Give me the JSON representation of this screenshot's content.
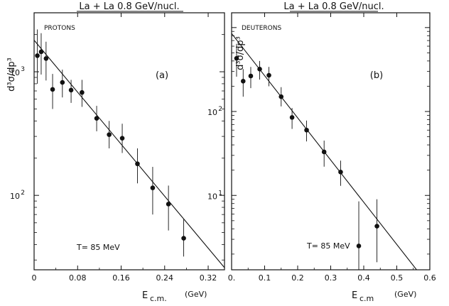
{
  "chart_data": [
    {
      "type": "scatter",
      "title": "La + La 0.8 GeV/nucl.",
      "ylabel": "d³σ/dp³",
      "xlabel_main": "E",
      "xlabel_sub": "c.m.",
      "xlabel_unit": "(GeV)",
      "panel_tag": "(a)",
      "particle": "PROTONS",
      "temperature_label": "T=  85 MeV",
      "xlim": [
        0,
        0.35
      ],
      "ylim": [
        25,
        3000
      ],
      "yscale": "log",
      "x_ticks": [
        0,
        0.08,
        0.16,
        0.24,
        0.32
      ],
      "x_tick_labels": [
        "0",
        "0.08",
        "0.16",
        "0.24",
        "0.32"
      ],
      "y_ticks": [
        100,
        1000
      ],
      "y_tick_labels": [
        [
          "10",
          "2"
        ],
        [
          "10",
          "3"
        ]
      ],
      "fit_line": [
        [
          0,
          1800
        ],
        [
          0.35,
          26
        ]
      ],
      "series": [
        {
          "x": [
            0.006,
            0.013,
            0.022,
            0.034,
            0.052,
            0.068,
            0.088,
            0.115,
            0.138,
            0.162,
            0.19,
            0.218,
            0.247,
            0.275
          ],
          "y": [
            1350,
            1450,
            1280,
            720,
            820,
            710,
            680,
            420,
            310,
            290,
            180,
            115,
            85,
            45
          ],
          "err_low": [
            800,
            950,
            850,
            500,
            620,
            560,
            520,
            330,
            240,
            220,
            125,
            70,
            52,
            32
          ],
          "err_high": [
            2200,
            2050,
            1750,
            960,
            1040,
            860,
            860,
            530,
            400,
            380,
            240,
            170,
            120,
            64
          ]
        }
      ]
    },
    {
      "type": "scatter",
      "title": "La + La 0.8 GeV/nucl.",
      "ylabel": "d³σ/dp³",
      "xlabel_main": "E",
      "xlabel_sub": "c.m",
      "xlabel_unit": "(GeV)",
      "panel_tag": "(b)",
      "particle": "DEUTERONS",
      "temperature_label": "T=  85 MeV",
      "xlim": [
        0,
        0.6
      ],
      "ylim": [
        1.3,
        1500
      ],
      "yscale": "log",
      "x_ticks": [
        0,
        0.1,
        0.2,
        0.3,
        0.4,
        0.5,
        0.6
      ],
      "x_tick_labels": [
        "0.",
        "0.1",
        "0.2",
        "0.3",
        "0.4",
        "0.5",
        "0.6"
      ],
      "y_ticks": [
        10,
        100
      ],
      "y_tick_labels": [
        [
          "10",
          "1"
        ],
        [
          "10",
          "2"
        ]
      ],
      "fit_line": [
        [
          0,
          850
        ],
        [
          0.56,
          1.3
        ]
      ],
      "series": [
        {
          "x": [
            0.015,
            0.035,
            0.058,
            0.085,
            0.113,
            0.15,
            0.183,
            0.227,
            0.28,
            0.33,
            0.385,
            0.44
          ],
          "y": [
            430,
            230,
            265,
            320,
            270,
            150,
            85,
            60,
            33,
            19,
            2.5,
            4.3
          ],
          "err_low": [
            260,
            150,
            190,
            240,
            200,
            115,
            62,
            44,
            22,
            13,
            1.3,
            1.6
          ],
          "err_high": [
            640,
            320,
            340,
            400,
            340,
            195,
            110,
            78,
            45,
            26,
            8.5,
            9.0
          ]
        }
      ]
    }
  ]
}
